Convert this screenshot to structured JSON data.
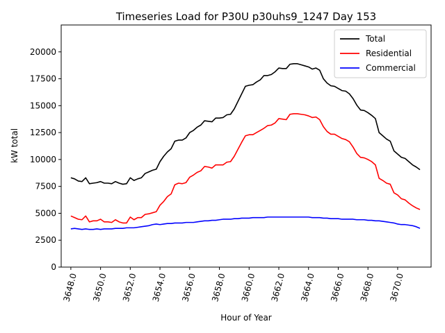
{
  "chart_data": {
    "type": "line",
    "title": "Timeseries Load for P30U p30uhs9_1247  Day 153",
    "xlabel": "Hour of Year",
    "ylabel": "kW total",
    "xlim": [
      3647.35,
      3672.25
    ],
    "ylim": [
      0,
      22500
    ],
    "x_ticks": [
      3648,
      3650,
      3652,
      3654,
      3656,
      3658,
      3660,
      3662,
      3664,
      3666,
      3668,
      3670
    ],
    "x_tick_labels": [
      "3648.0",
      "3650.0",
      "3652.0",
      "3654.0",
      "3656.0",
      "3658.0",
      "3660.0",
      "3662.0",
      "3664.0",
      "3666.0",
      "3668.0",
      "3670.0"
    ],
    "y_ticks": [
      0,
      2500,
      5000,
      7500,
      10000,
      12500,
      15000,
      17500,
      20000
    ],
    "y_tick_labels": [
      "0",
      "2500",
      "5000",
      "7500",
      "10000",
      "12500",
      "15000",
      "17500",
      "20000"
    ],
    "legend_position": "top-right",
    "x": [
      3648.0,
      3648.25,
      3648.5,
      3648.75,
      3649.0,
      3649.25,
      3649.5,
      3649.75,
      3650.0,
      3650.25,
      3650.5,
      3650.75,
      3651.0,
      3651.25,
      3651.5,
      3651.75,
      3652.0,
      3652.25,
      3652.5,
      3652.75,
      3653.0,
      3653.25,
      3653.5,
      3653.75,
      3654.0,
      3654.25,
      3654.5,
      3654.75,
      3655.0,
      3655.25,
      3655.5,
      3655.75,
      3656.0,
      3656.25,
      3656.5,
      3656.75,
      3657.0,
      3657.25,
      3657.5,
      3657.75,
      3658.0,
      3658.25,
      3658.5,
      3658.75,
      3659.0,
      3659.25,
      3659.5,
      3659.75,
      3660.0,
      3660.25,
      3660.5,
      3660.75,
      3661.0,
      3661.25,
      3661.5,
      3661.75,
      3662.0,
      3662.25,
      3662.5,
      3662.75,
      3663.0,
      3663.25,
      3663.5,
      3663.75,
      3664.0,
      3664.25,
      3664.5,
      3664.75,
      3665.0,
      3665.25,
      3665.5,
      3665.75,
      3666.0,
      3666.25,
      3666.5,
      3666.75,
      3667.0,
      3667.25,
      3667.5,
      3667.75,
      3668.0,
      3668.25,
      3668.5,
      3668.75,
      3669.0,
      3669.25,
      3669.5,
      3669.75,
      3670.0,
      3670.25,
      3670.5,
      3670.75,
      3671.0,
      3671.25,
      3671.5
    ],
    "series": [
      {
        "name": "Total",
        "color": "#000000",
        "values": [
          8300,
          8200,
          8000,
          7950,
          8300,
          7750,
          7800,
          7850,
          7950,
          7800,
          7800,
          7750,
          7950,
          7800,
          7700,
          7750,
          8300,
          8050,
          8200,
          8300,
          8700,
          8850,
          9000,
          9100,
          9800,
          10300,
          10700,
          11000,
          11700,
          11800,
          11800,
          12000,
          12500,
          12700,
          13000,
          13200,
          13600,
          13550,
          13500,
          13850,
          13850,
          13900,
          14150,
          14200,
          14700,
          15400,
          16100,
          16800,
          16900,
          16950,
          17200,
          17400,
          17800,
          17800,
          17900,
          18150,
          18500,
          18450,
          18450,
          18850,
          18900,
          18900,
          18800,
          18700,
          18600,
          18400,
          18500,
          18300,
          17500,
          17100,
          16850,
          16800,
          16600,
          16400,
          16350,
          16100,
          15650,
          15050,
          14600,
          14550,
          14350,
          14100,
          13800,
          12500,
          12200,
          11900,
          11700,
          10800,
          10500,
          10200,
          10100,
          9800,
          9500,
          9300,
          9050
        ]
      },
      {
        "name": "Residential",
        "color": "#ff0000",
        "values": [
          4750,
          4600,
          4450,
          4400,
          4750,
          4200,
          4300,
          4300,
          4450,
          4200,
          4200,
          4150,
          4400,
          4200,
          4100,
          4100,
          4650,
          4400,
          4600,
          4600,
          4900,
          4950,
          5050,
          5150,
          5750,
          6100,
          6550,
          6800,
          7650,
          7800,
          7750,
          7850,
          8350,
          8550,
          8800,
          8950,
          9350,
          9300,
          9200,
          9500,
          9500,
          9500,
          9750,
          9800,
          10300,
          10950,
          11600,
          12200,
          12300,
          12300,
          12500,
          12700,
          12900,
          13150,
          13200,
          13400,
          13800,
          13750,
          13700,
          14200,
          14250,
          14250,
          14200,
          14150,
          14050,
          13900,
          13950,
          13700,
          13050,
          12600,
          12350,
          12350,
          12150,
          11950,
          11850,
          11650,
          11150,
          10550,
          10200,
          10150,
          10000,
          9800,
          9500,
          8250,
          8050,
          7800,
          7700,
          6900,
          6700,
          6350,
          6250,
          5950,
          5700,
          5500,
          5350
        ]
      },
      {
        "name": "Commercial",
        "color": "#0000ff",
        "values": [
          3550,
          3600,
          3550,
          3500,
          3550,
          3500,
          3500,
          3550,
          3500,
          3550,
          3550,
          3550,
          3600,
          3600,
          3600,
          3650,
          3650,
          3650,
          3700,
          3750,
          3800,
          3850,
          3950,
          4000,
          3950,
          4000,
          4050,
          4050,
          4100,
          4100,
          4100,
          4150,
          4150,
          4150,
          4200,
          4250,
          4300,
          4300,
          4350,
          4350,
          4400,
          4450,
          4450,
          4450,
          4500,
          4500,
          4550,
          4550,
          4550,
          4600,
          4600,
          4600,
          4600,
          4650,
          4650,
          4650,
          4650,
          4650,
          4650,
          4650,
          4650,
          4650,
          4650,
          4650,
          4650,
          4600,
          4600,
          4600,
          4550,
          4550,
          4500,
          4500,
          4500,
          4450,
          4450,
          4450,
          4450,
          4400,
          4400,
          4400,
          4350,
          4350,
          4300,
          4300,
          4250,
          4200,
          4150,
          4100,
          4000,
          3950,
          3950,
          3900,
          3850,
          3750,
          3600
        ]
      }
    ]
  }
}
